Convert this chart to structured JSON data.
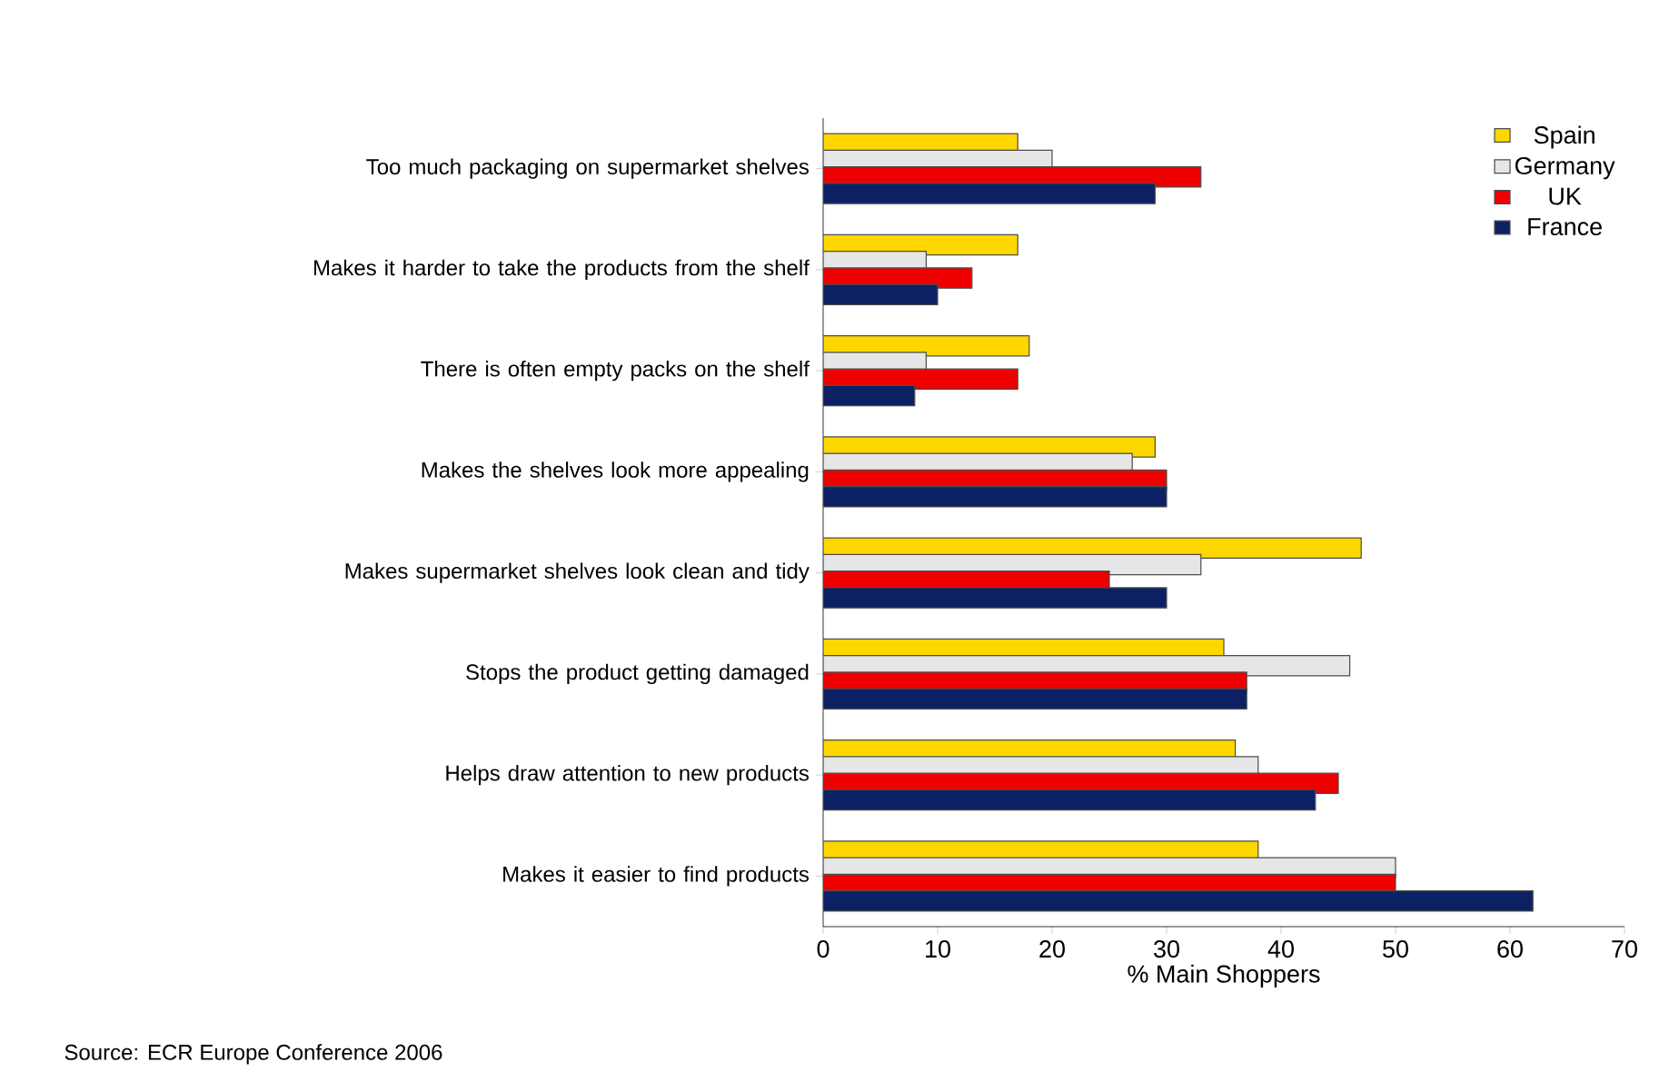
{
  "chart_data": {
    "type": "bar",
    "orientation": "horizontal",
    "xlabel": "% Main Shoppers",
    "categories": [
      "Too much packaging on supermarket shelves",
      "Makes it harder to take the products from the shelf",
      "There is often empty packs on the shelf",
      "Makes the shelves look more appealing",
      "Makes supermarket shelves look clean and tidy",
      "Stops the product getting damaged",
      "Helps draw attention to new products",
      "Makes it easier to find products"
    ],
    "series": [
      {
        "name": "Spain",
        "color": "#ffd700",
        "values": [
          17,
          17,
          18,
          29,
          47,
          35,
          36,
          38
        ]
      },
      {
        "name": "Germany",
        "color": "#e6e6e6",
        "values": [
          20,
          9,
          9,
          27,
          33,
          46,
          38,
          50
        ]
      },
      {
        "name": "UK",
        "color": "#ee0000",
        "values": [
          33,
          13,
          17,
          30,
          25,
          37,
          45,
          50
        ]
      },
      {
        "name": "France",
        "color": "#0b2163",
        "values": [
          29,
          10,
          8,
          30,
          30,
          37,
          43,
          62
        ]
      }
    ],
    "xlim": [
      0,
      70
    ],
    "xticks": [
      0,
      10,
      20,
      30,
      40,
      50,
      60,
      70
    ],
    "legend": "top right",
    "grid": false,
    "annotations": [
      "Source: ECR Europe Conference 2006"
    ]
  }
}
